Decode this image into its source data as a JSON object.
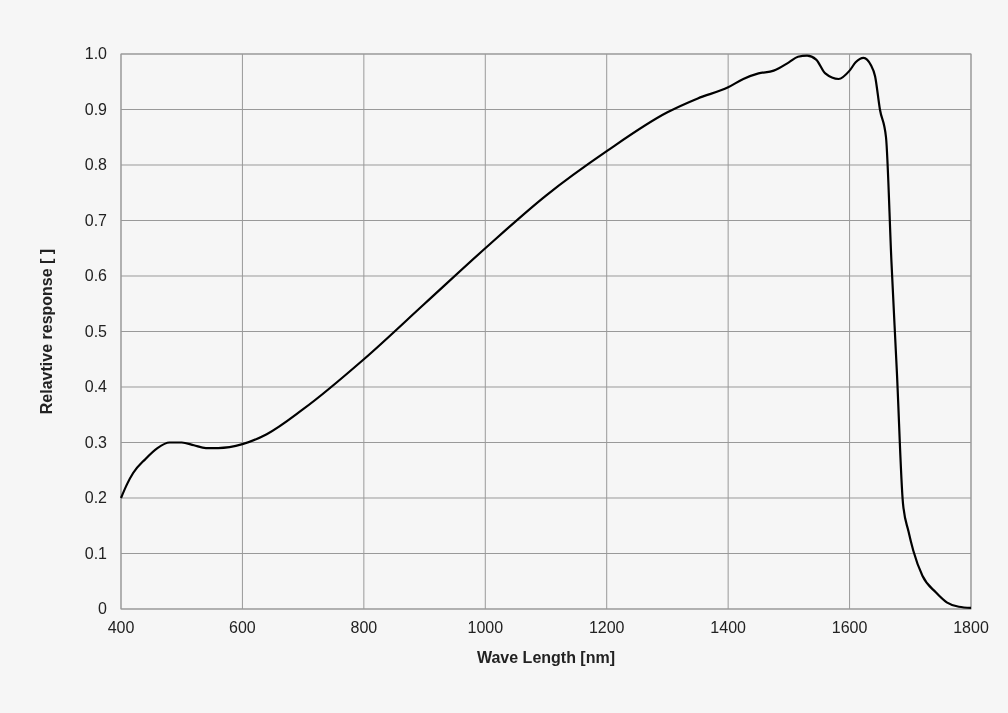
{
  "chart_data": {
    "type": "line",
    "xlabel": "Wave Length [nm]",
    "ylabel": "Relavtive response [ ]",
    "x": [
      400,
      410,
      420,
      440,
      460,
      480,
      500,
      520,
      540,
      560,
      600,
      640,
      700,
      800,
      900,
      1000,
      1100,
      1200,
      1300,
      1350,
      1400,
      1425,
      1450,
      1475,
      1500,
      1515,
      1530,
      1545,
      1560,
      1582,
      1600,
      1610,
      1623,
      1635,
      1642,
      1650,
      1660,
      1669,
      1678,
      1688,
      1697,
      1705,
      1720,
      1742,
      1760,
      1780,
      1800
    ],
    "series": [
      {
        "color": "#000000",
        "values": [
          0.2,
          0.225,
          0.245,
          0.27,
          0.29,
          0.3,
          0.3,
          0.295,
          0.29,
          0.29,
          0.297,
          0.315,
          0.36,
          0.45,
          0.55,
          0.65,
          0.745,
          0.825,
          0.895,
          0.92,
          0.94,
          0.955,
          0.965,
          0.97,
          0.985,
          0.995,
          0.997,
          0.99,
          0.965,
          0.955,
          0.97,
          0.985,
          0.993,
          0.98,
          0.96,
          0.9,
          0.85,
          0.625,
          0.425,
          0.19,
          0.14,
          0.105,
          0.06,
          0.03,
          0.012,
          0.004,
          0.002
        ]
      }
    ],
    "xlim": [
      400,
      1800
    ],
    "ylim": [
      0,
      1
    ],
    "xticks": [
      400,
      600,
      800,
      1000,
      1200,
      1400,
      1600,
      1800
    ],
    "yticks": [
      0,
      0.1,
      0.2,
      0.3,
      0.4,
      0.5,
      0.6,
      0.7,
      0.8,
      0.9,
      {
        "value": 1,
        "label": "1.0"
      }
    ],
    "grid": true,
    "marker": "none",
    "line_style": "solid"
  }
}
